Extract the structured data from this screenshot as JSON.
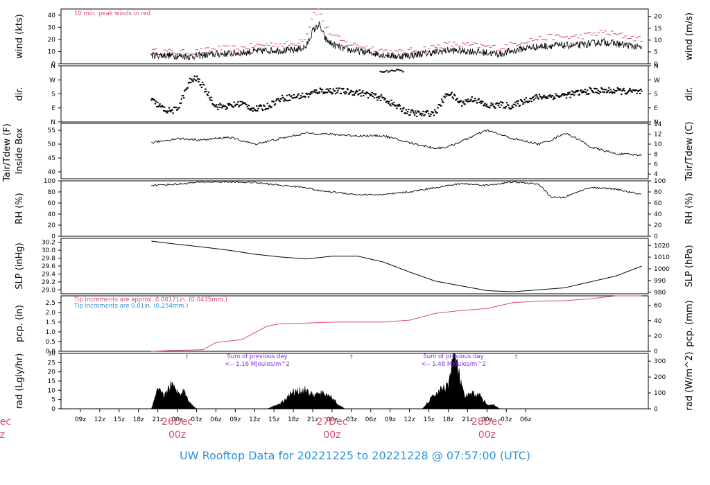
{
  "footer": "UW Rooftop Data for 20221225  to  20221228 @ 07:57:00  (UTC)",
  "colors": {
    "red": "#d64d6a",
    "blue": "#2d93d8",
    "purple": "#8a2be2",
    "black": "#000000"
  },
  "x_axis": {
    "hours": [
      "09z",
      "12z",
      "15z",
      "18z",
      "21z",
      "00z",
      "03z",
      "06z",
      "09z",
      "12z",
      "15z",
      "18z",
      "21z",
      "00z",
      "03z",
      "06z",
      "09z",
      "12z",
      "15z",
      "18z",
      "21z",
      "00z",
      "03z",
      "06z"
    ],
    "day_labels": [
      {
        "top": "26Dec",
        "bottom": "00z"
      },
      {
        "top": "27Dec",
        "bottom": "00z"
      },
      {
        "top": "28Dec",
        "bottom": "00z"
      }
    ],
    "edge_label": {
      "top": "ec",
      "bottom": "z"
    }
  },
  "panels": {
    "wind": {
      "left_label": "wind (kts)",
      "right_label": "wind (m/s)",
      "left_ticks": [
        "0",
        "10",
        "20",
        "30",
        "40"
      ],
      "right_ticks": [
        "0",
        "5",
        "10",
        "15",
        "20"
      ],
      "annotation": "10 min. peak winds in red"
    },
    "dir": {
      "left_label": "dir.",
      "right_label": "dir.",
      "left_ticks": [
        "N",
        "E",
        "S",
        "W",
        "N"
      ],
      "right_ticks": [
        "N",
        "E",
        "S",
        "W",
        "N"
      ]
    },
    "temp": {
      "left_label": "Tair/Tdew (F)",
      "left_label2": "Inside Box",
      "right_label": "Tair/Tdew (C)",
      "left_ticks": [
        "40",
        "45",
        "50",
        "55"
      ],
      "right_ticks": [
        "4",
        "6",
        "8",
        "10",
        "12",
        "14"
      ]
    },
    "rh": {
      "left_label": "RH (%)",
      "right_label": "RH (%)",
      "left_ticks": [
        "0",
        "20",
        "40",
        "60",
        "80",
        "100"
      ],
      "right_ticks": [
        "0",
        "20",
        "40",
        "60",
        "80",
        "100"
      ]
    },
    "slp": {
      "left_label": "SLP (inHg)",
      "right_label": "SLP (hPa)",
      "left_ticks": [
        "29.0",
        "29.2",
        "29.4",
        "29.6",
        "29.8",
        "30.0",
        "30.2"
      ],
      "right_ticks": [
        "980",
        "990",
        "1000",
        "1010",
        "1020"
      ]
    },
    "pcp": {
      "left_label": "pcp. (in)",
      "right_label": "pcp. (mm)",
      "left_ticks": [
        "0.0",
        "0.5",
        "1.0",
        "1.5",
        "2.0",
        "2.5"
      ],
      "right_ticks": [
        "0",
        "20",
        "40",
        "60"
      ],
      "note_red": "Tip increments are approx. 0.00171in. (0.0435mm.)",
      "note_blue": "Tip increments are 0.01in. (0.254mm.)"
    },
    "rad": {
      "left_label": "rad (Lgly/hr)",
      "right_label": "rad (W/m^2)",
      "left_ticks": [
        "0",
        "5",
        "10",
        "15",
        "20",
        "25",
        "30"
      ],
      "right_ticks": [
        "0",
        "100",
        "200",
        "300"
      ],
      "sum1_title": "Sum of previous day",
      "sum1_value": "<-- 1.16 MJoules/m^2",
      "sum2_title": "Sum of previous day",
      "sum2_value": "<-- 1.48 MJoules/m^2"
    }
  },
  "chart_data": [
    {
      "type": "line",
      "title": "",
      "ylabel": "wind (kts)",
      "ylim": [
        0,
        45
      ],
      "x_hours": [
        20,
        22,
        26,
        30,
        34,
        38,
        42,
        44,
        45,
        46,
        47,
        48,
        50,
        54,
        58,
        62,
        66,
        70,
        74,
        78,
        82,
        86,
        90,
        94,
        96
      ],
      "series": [
        {
          "name": "",
          "values": [
            7,
            7,
            6,
            8,
            9,
            11,
            11,
            14,
            27,
            32,
            20,
            16,
            12,
            9,
            6,
            8,
            11,
            10,
            8,
            13,
            15,
            15,
            18,
            15,
            13
          ]
        },
        {
          "name": "10 min. peak winds in red",
          "values": [
            10,
            10,
            9,
            12,
            13,
            16,
            16,
            22,
            41,
            44,
            30,
            24,
            17,
            13,
            9,
            12,
            16,
            15,
            13,
            19,
            22,
            22,
            26,
            22,
            20
          ]
        }
      ]
    },
    {
      "type": "scatter",
      "title": "",
      "ylabel": "dir.",
      "ylim": [
        0,
        360
      ],
      "yticklabels": [
        "N",
        "E",
        "S",
        "W",
        "N"
      ],
      "x_hours": [
        20,
        22,
        23,
        24,
        26,
        27,
        28,
        30,
        32,
        34,
        36,
        38,
        40,
        42,
        44,
        46,
        48,
        52,
        56,
        58,
        60,
        62,
        64,
        66,
        68,
        70,
        72,
        74,
        76,
        78,
        80,
        84,
        88,
        92,
        96
      ],
      "values": [
        140,
        80,
        70,
        80,
        260,
        280,
        230,
        100,
        100,
        120,
        80,
        100,
        150,
        160,
        170,
        200,
        200,
        190,
        150,
        100,
        60,
        50,
        60,
        190,
        120,
        150,
        100,
        110,
        100,
        140,
        160,
        170,
        200,
        200,
        190
      ]
    },
    {
      "type": "line",
      "title": "",
      "ylabel": "Tair/Tdew (F)",
      "ylim": [
        37.5,
        57.5
      ],
      "x_hours": [
        20,
        24,
        28,
        32,
        36,
        40,
        44,
        48,
        52,
        56,
        60,
        64,
        66,
        68,
        70,
        72,
        76,
        80,
        82,
        84,
        86,
        88,
        92,
        96
      ],
      "values": [
        50.5,
        52,
        51.5,
        52.5,
        50,
        52,
        54,
        53.5,
        53,
        53,
        50.5,
        48.5,
        49,
        51,
        53,
        55,
        52,
        50,
        51.5,
        54,
        52,
        49,
        46.5,
        46
      ]
    },
    {
      "type": "line",
      "title": "",
      "ylabel": "RH (%)",
      "ylim": [
        0,
        100
      ],
      "x_hours": [
        20,
        24,
        28,
        32,
        36,
        40,
        44,
        46,
        48,
        52,
        56,
        60,
        64,
        68,
        72,
        76,
        80,
        82,
        84,
        86,
        88,
        92,
        96
      ],
      "values": [
        92,
        94,
        98,
        98,
        97,
        92,
        88,
        82,
        80,
        75,
        75,
        80,
        88,
        95,
        92,
        98,
        94,
        70,
        70,
        80,
        88,
        85,
        75
      ]
    },
    {
      "type": "line",
      "title": "",
      "ylabel": "SLP (inHg)",
      "ylim": [
        28.9,
        30.3
      ],
      "x_hours": [
        20,
        24,
        28,
        32,
        36,
        40,
        44,
        48,
        52,
        56,
        60,
        64,
        68,
        72,
        76,
        80,
        84,
        88,
        92,
        96
      ],
      "values": [
        30.23,
        30.15,
        30.08,
        30.0,
        29.9,
        29.83,
        29.78,
        29.85,
        29.85,
        29.7,
        29.45,
        29.22,
        29.1,
        28.98,
        28.95,
        29.0,
        29.05,
        29.2,
        29.35,
        29.6
      ]
    },
    {
      "type": "line",
      "title": "",
      "ylabel": "pcp. (in)",
      "ylim": [
        0,
        2.85
      ],
      "x_hours": [
        20,
        24,
        28,
        30,
        34,
        38,
        40,
        44,
        48,
        52,
        56,
        60,
        64,
        68,
        72,
        76,
        80,
        84,
        88,
        92,
        96
      ],
      "values": [
        0.0,
        0.05,
        0.08,
        0.45,
        0.6,
        1.3,
        1.42,
        1.45,
        1.5,
        1.5,
        1.5,
        1.6,
        1.95,
        2.1,
        2.2,
        2.5,
        2.58,
        2.6,
        2.7,
        2.85,
        2.85
      ]
    },
    {
      "type": "area",
      "title": "",
      "ylabel": "rad (Lgly/hr)",
      "ylim": [
        0,
        30
      ],
      "x_hours": [
        20,
        21,
        22,
        23,
        24,
        25,
        26,
        27,
        38,
        40,
        42,
        44,
        45,
        46,
        47,
        48,
        49,
        50,
        51,
        52,
        62,
        64,
        66,
        67,
        67.5,
        68,
        68.5,
        69,
        70,
        71,
        72,
        73,
        74
      ],
      "values": [
        0,
        10,
        7,
        13,
        9,
        10,
        3,
        0,
        0,
        3,
        9,
        10,
        7,
        8,
        8,
        6,
        2,
        0,
        0,
        0,
        0,
        8,
        13,
        31,
        20,
        14,
        6,
        7,
        8,
        7,
        2,
        2,
        0
      ]
    }
  ]
}
